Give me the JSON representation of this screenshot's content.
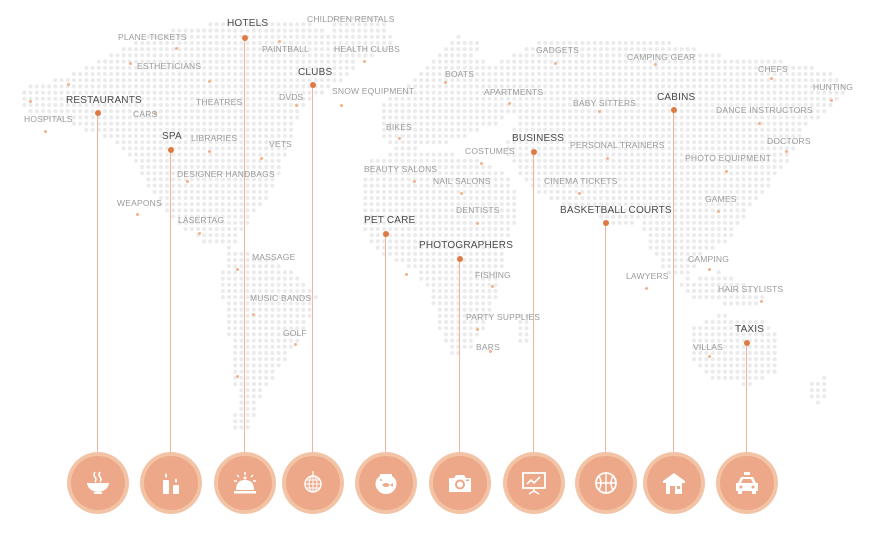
{
  "colors": {
    "accent": "#e07a45",
    "land": "#ebebeb",
    "circle": "#eca888",
    "ring": "#f3c3a6"
  },
  "labels": [
    {
      "text": "PLANE TICKETS",
      "major": false
    },
    {
      "text": "HOTELS",
      "major": true
    },
    {
      "text": "CHILDREN RENTALS",
      "major": false
    },
    {
      "text": "PAINTBALL",
      "major": false
    },
    {
      "text": "HEALTH CLUBS",
      "major": false
    },
    {
      "text": "GADGETS",
      "major": false
    },
    {
      "text": "CAMPING GEAR",
      "major": false
    },
    {
      "text": "CHEFS",
      "major": false
    },
    {
      "text": "ESTHETICIANS",
      "major": false
    },
    {
      "text": "CLUBS",
      "major": true
    },
    {
      "text": "BOATS",
      "major": false
    },
    {
      "text": "HUNTING",
      "major": false
    },
    {
      "text": "SNOW EQUIPMENT",
      "major": false
    },
    {
      "text": "DVDS",
      "major": false
    },
    {
      "text": "APARTMENTS",
      "major": false
    },
    {
      "text": "RESTAURANTS",
      "major": true
    },
    {
      "text": "THEATRES",
      "major": false
    },
    {
      "text": "BABY SITTERS",
      "major": false
    },
    {
      "text": "CABINS",
      "major": true
    },
    {
      "text": "DANCE INSTRUCTORS",
      "major": false
    },
    {
      "text": "CARS",
      "major": false
    },
    {
      "text": "HOSPITALS",
      "major": false
    },
    {
      "text": "BIKES",
      "major": false
    },
    {
      "text": "SPA",
      "major": true
    },
    {
      "text": "LIBRARIES",
      "major": false
    },
    {
      "text": "BUSINESS",
      "major": true
    },
    {
      "text": "DOCTORS",
      "major": false
    },
    {
      "text": "VETS",
      "major": false
    },
    {
      "text": "PERSONAL TRAINERS",
      "major": false
    },
    {
      "text": "COSTUMES",
      "major": false
    },
    {
      "text": "PHOTO EQUIPMENT",
      "major": false
    },
    {
      "text": "BEAUTY SALONS",
      "major": false
    },
    {
      "text": "DESIGNER HANDBAGS",
      "major": false
    },
    {
      "text": "NAIL SALONS",
      "major": false
    },
    {
      "text": "CINEMA TICKETS",
      "major": false
    },
    {
      "text": "GAMES",
      "major": false
    },
    {
      "text": "WEAPONS",
      "major": false
    },
    {
      "text": "DENTISTS",
      "major": false
    },
    {
      "text": "BASKETBALL COURTS",
      "major": true
    },
    {
      "text": "LASERTAG",
      "major": false
    },
    {
      "text": "PET CARE",
      "major": true
    },
    {
      "text": "PHOTOGRAPHERS",
      "major": true
    },
    {
      "text": "MASSAGE",
      "major": false
    },
    {
      "text": "CAMPING",
      "major": false
    },
    {
      "text": "FISHING",
      "major": false
    },
    {
      "text": "LAWYERS",
      "major": false
    },
    {
      "text": "HAIR STYLISTS",
      "major": false
    },
    {
      "text": "MUSIC BANDS",
      "major": false
    },
    {
      "text": "PARTY SUPPLIES",
      "major": false
    },
    {
      "text": "GOLF",
      "major": false
    },
    {
      "text": "TAXIS",
      "major": true
    },
    {
      "text": "BARS",
      "major": false
    },
    {
      "text": "VILLAS",
      "major": false
    }
  ],
  "categories": [
    {
      "name": "restaurants",
      "icon": "food-bowl-icon"
    },
    {
      "name": "spa",
      "icon": "candles-icon"
    },
    {
      "name": "hotels",
      "icon": "service-bell-icon"
    },
    {
      "name": "clubs",
      "icon": "disco-ball-icon"
    },
    {
      "name": "pet-care",
      "icon": "fishbowl-icon"
    },
    {
      "name": "photographers",
      "icon": "camera-icon"
    },
    {
      "name": "business",
      "icon": "presentation-chart-icon"
    },
    {
      "name": "basketball-courts",
      "icon": "basketball-icon"
    },
    {
      "name": "cabins",
      "icon": "cabin-icon"
    },
    {
      "name": "taxis",
      "icon": "taxi-icon"
    }
  ]
}
